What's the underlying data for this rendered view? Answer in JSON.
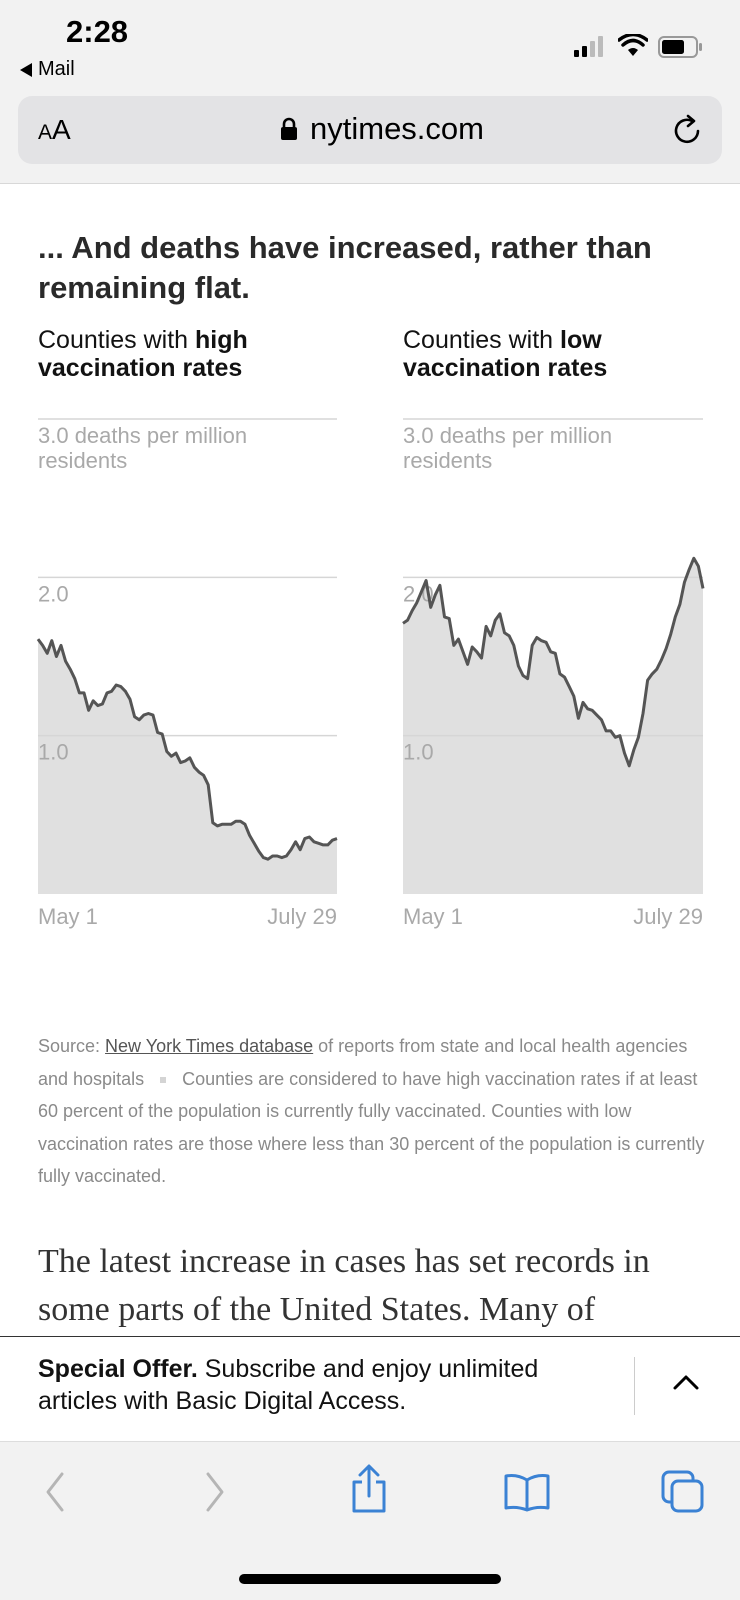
{
  "status_bar": {
    "time": "2:28",
    "back_label": "Mail"
  },
  "url_bar": {
    "text_size_label": "AA",
    "domain": "nytimes.com"
  },
  "article": {
    "heading": "... And deaths have increased, rather than remaining flat.",
    "panels": [
      {
        "title_prefix": "Counties with ",
        "title_bold": "high vaccination rates"
      },
      {
        "title_prefix": "Counties with ",
        "title_bold": "low vaccination rates"
      }
    ],
    "source": {
      "prefix": "Source: ",
      "link_text": "New York Times database",
      "after_link": " of reports from state and local health agencies and hospitals",
      "note": "Counties are considered to have high vaccination rates if at least 60 percent of the population is currently fully vaccinated. Counties with low vaccination rates are those where less than 30 percent of the population is currently fully vaccinated."
    },
    "body_text": "The latest increase in cases has set records in some parts of the United States. Many of"
  },
  "offer_banner": {
    "bold": "Special Offer.",
    "text": " Subscribe and enjoy unlimited articles with Basic Digital Access."
  },
  "colors": {
    "line": "#555555",
    "area": "#e0e0e0",
    "grid": "#d6d6d6",
    "muted_text": "#a9a9a9"
  },
  "chart_data": [
    {
      "type": "area",
      "title": "Counties with high vaccination rates",
      "ylabel": "3.0 deaths per million residents",
      "y_ticks": [
        "3.0",
        "2.0",
        "1.0"
      ],
      "x_ticks": [
        "May 1",
        "July 29"
      ],
      "ylim": [
        0,
        3.0
      ],
      "x_start": "May 1",
      "x_end": "July 29",
      "values": [
        1.61,
        1.57,
        1.52,
        1.6,
        1.5,
        1.57,
        1.47,
        1.42,
        1.36,
        1.27,
        1.27,
        1.16,
        1.22,
        1.19,
        1.2,
        1.27,
        1.28,
        1.32,
        1.31,
        1.28,
        1.23,
        1.12,
        1.1,
        1.13,
        1.14,
        1.13,
        1.02,
        1.01,
        0.9,
        0.87,
        0.89,
        0.83,
        0.84,
        0.86,
        0.8,
        0.77,
        0.75,
        0.69,
        0.45,
        0.43,
        0.44,
        0.44,
        0.44,
        0.46,
        0.46,
        0.44,
        0.37,
        0.32,
        0.27,
        0.23,
        0.22,
        0.24,
        0.24,
        0.23,
        0.24,
        0.28,
        0.33,
        0.28,
        0.35,
        0.36,
        0.33,
        0.32,
        0.31,
        0.31,
        0.34,
        0.35
      ]
    },
    {
      "type": "area",
      "title": "Counties with low vaccination rates",
      "ylabel": "3.0 deaths per million residents",
      "y_ticks": [
        "3.0",
        "2.0",
        "1.0"
      ],
      "x_ticks": [
        "May 1",
        "July 29"
      ],
      "ylim": [
        0,
        3.0
      ],
      "x_start": "May 1",
      "x_end": "July 29",
      "values": [
        1.71,
        1.73,
        1.79,
        1.84,
        1.91,
        1.98,
        1.81,
        1.89,
        1.95,
        1.75,
        1.74,
        1.57,
        1.61,
        1.53,
        1.45,
        1.56,
        1.53,
        1.49,
        1.69,
        1.63,
        1.73,
        1.77,
        1.65,
        1.63,
        1.57,
        1.44,
        1.38,
        1.36,
        1.57,
        1.62,
        1.6,
        1.59,
        1.53,
        1.52,
        1.39,
        1.37,
        1.31,
        1.25,
        1.11,
        1.21,
        1.17,
        1.16,
        1.13,
        1.1,
        1.03,
        1.03,
        0.99,
        1.0,
        0.89,
        0.81,
        0.91,
        0.99,
        1.14,
        1.35,
        1.39,
        1.42,
        1.48,
        1.55,
        1.64,
        1.75,
        1.83,
        1.97,
        2.05,
        2.12,
        2.07,
        1.93
      ]
    }
  ]
}
